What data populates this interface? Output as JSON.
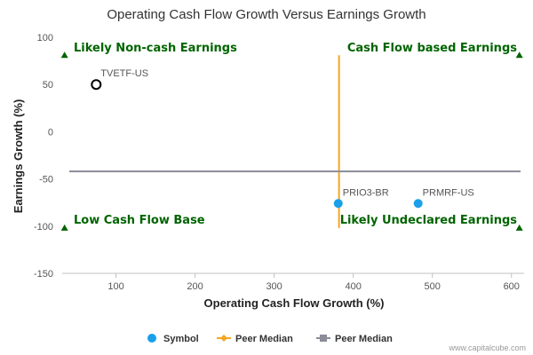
{
  "chart_data": {
    "type": "scatter",
    "title": "Operating Cash Flow Growth Versus Earnings Growth",
    "xlabel": "Operating Cash Flow Growth (%)",
    "ylabel": "Earnings Growth (%)",
    "xlim": [
      32,
      616
    ],
    "ylim": [
      -150,
      100
    ],
    "xticks": [
      100,
      200,
      300,
      400,
      500,
      600
    ],
    "yticks": [
      100,
      50,
      0,
      -50,
      -100,
      -150
    ],
    "grid": false,
    "points": [
      {
        "label": "TVETF-US",
        "x": 75,
        "y": 50,
        "style": "hollow",
        "color": "#000000"
      },
      {
        "label": "PRIO3-BR",
        "x": 381,
        "y": -76,
        "style": "filled",
        "color": "#1a9fe8"
      },
      {
        "label": "PRMRF-US",
        "x": 482,
        "y": -76,
        "style": "filled",
        "color": "#1a9fe8"
      }
    ],
    "median_lines": [
      {
        "orientation": "vertical",
        "value": 382,
        "from": -102,
        "to": 81,
        "color": "#f5a623"
      },
      {
        "orientation": "horizontal",
        "value": -42,
        "color": "#8c8c99"
      }
    ],
    "quadrant_labels": [
      {
        "text": "Likely Non-cash Earnings",
        "corner": "top-left"
      },
      {
        "text": "Cash Flow based Earnings",
        "corner": "top-right"
      },
      {
        "text": "Low Cash Flow Base",
        "corner": "bottom-left"
      },
      {
        "text": "Likely Undeclared Earnings",
        "corner": "bottom-right"
      }
    ],
    "corner_markers": [
      {
        "x": 35,
        "y": 81
      },
      {
        "x": 610,
        "y": 81
      },
      {
        "x": 35,
        "y": -102
      },
      {
        "x": 610,
        "y": -102
      }
    ],
    "quadrant_color": "#006400",
    "legend": {
      "placement": "bottom",
      "items": [
        {
          "name": "Symbol",
          "kind": "dot",
          "color": "#1a9fe8"
        },
        {
          "name": "Peer Median",
          "kind": "line-diamond",
          "color": "#f5a623"
        },
        {
          "name": "Peer Median",
          "kind": "line-square",
          "color": "#8c8c99"
        }
      ]
    },
    "credit": "www.capitalcube.com"
  }
}
